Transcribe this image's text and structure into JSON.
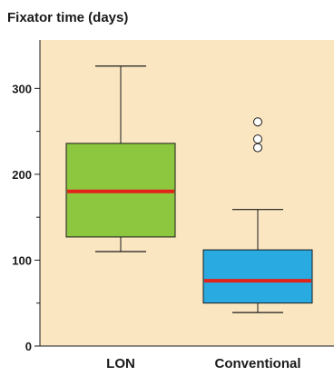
{
  "chart_data": {
    "type": "boxplot",
    "ylabel": "Fixator time (days)",
    "xlabel": "",
    "ylim": [
      0,
      350
    ],
    "yticks": [
      0,
      100,
      200,
      300
    ],
    "yticks_minor": [
      50,
      150,
      250
    ],
    "grid": false,
    "background_color": "#fbe6c2",
    "median_color": "#e2231a",
    "categories": [
      "LON",
      "Conventional"
    ],
    "series": [
      {
        "category": "LON",
        "color": "#8dc63f",
        "whisker_low": 110,
        "q1": 127,
        "median": 180,
        "q3": 236,
        "whisker_high": 326,
        "outliers": []
      },
      {
        "category": "Conventional",
        "color": "#29abe2",
        "whisker_low": 39,
        "q1": 50,
        "median": 76,
        "q3": 112,
        "whisker_high": 159,
        "outliers": [
          231,
          241,
          261
        ]
      }
    ]
  }
}
